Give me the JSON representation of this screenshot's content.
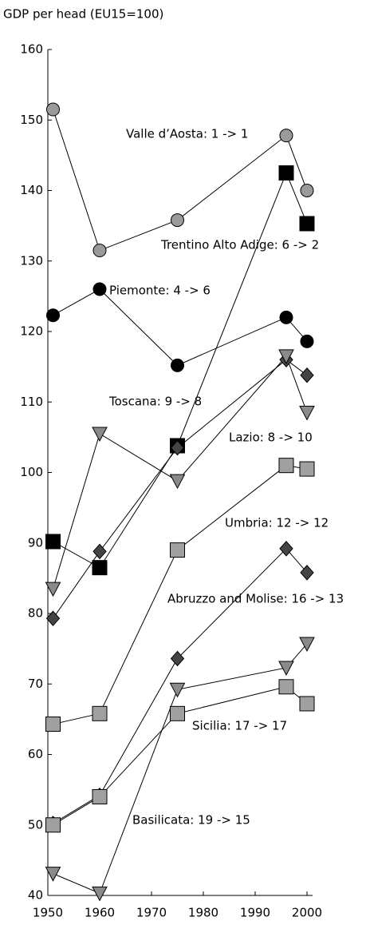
{
  "chart_data": {
    "type": "line",
    "title": "GDP per head (EU15=100)",
    "x": [
      1951,
      1960,
      1975,
      1996,
      2000
    ],
    "xlim": [
      1950,
      2000
    ],
    "xticks": [
      1950,
      1960,
      1970,
      1980,
      1990,
      2000
    ],
    "ylim": [
      40,
      160
    ],
    "yticks": [
      40,
      50,
      60,
      70,
      80,
      90,
      100,
      110,
      120,
      130,
      140,
      150,
      160
    ],
    "series": [
      {
        "name": "Valle d’Aosta: 1 -> 1",
        "marker": "circle",
        "color": "#9a9a9a",
        "values": [
          151.5,
          131.5,
          135.8,
          147.8,
          140
        ]
      },
      {
        "name": "Trentino Alto Adige: 6 -> 2",
        "marker": "square",
        "color": "#000000",
        "values": [
          90.2,
          86.5,
          103.8,
          142.5,
          135.3
        ]
      },
      {
        "name": "Piemonte: 4 -> 6",
        "marker": "circle",
        "color": "#000000",
        "values": [
          122.3,
          126,
          115.2,
          122,
          118.6
        ]
      },
      {
        "name": "Toscana: 9 -> 8",
        "marker": "diamond",
        "color": "#444444",
        "values": [
          79.3,
          88.8,
          103.5,
          116,
          113.8
        ]
      },
      {
        "name": "Lazio: 8 -> 10",
        "marker": "triangle",
        "color": "#8a8a8a",
        "values": [
          83.5,
          105.5,
          98.8,
          116.5,
          108.5
        ]
      },
      {
        "name": "Umbria: 12 -> 12",
        "marker": "square",
        "color": "#a0a0a0",
        "values": [
          64.3,
          65.8,
          89,
          101,
          100.5
        ]
      },
      {
        "name": "Abruzzo and Molise: 16 -> 13",
        "marker": "diamond",
        "color": "#444444",
        "values": [
          50.2,
          54.2,
          73.6,
          89.2,
          85.8
        ]
      },
      {
        "name": "Sicilia: 17 -> 17",
        "marker": "square",
        "color": "#a0a0a0",
        "values": [
          50,
          54,
          65.8,
          69.6,
          67.2
        ]
      },
      {
        "name": "Basilicata: 19 -> 15",
        "marker": "triangle",
        "color": "#8a8a8a",
        "values": [
          43.1,
          40.3,
          69.2,
          72.3,
          75.7
        ]
      }
    ]
  }
}
